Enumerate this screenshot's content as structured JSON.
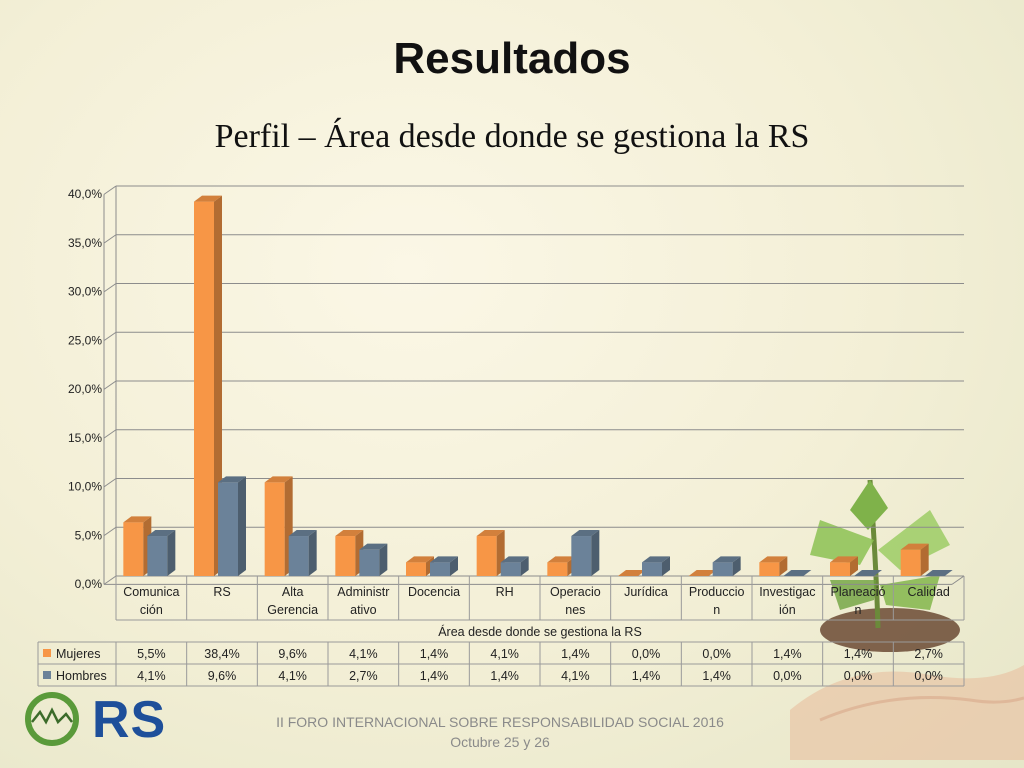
{
  "title": "Resultados",
  "subtitle": "Perfil – Área desde donde se gestiona la RS",
  "footer": {
    "line1": "II FORO INTERNACIONAL SOBRE RESPONSABILIDAD SOCIAL 2016",
    "line2": "Octubre 25 y 26"
  },
  "logo": {
    "text": "RS"
  },
  "chart_data": {
    "type": "bar",
    "title": "",
    "xlabel": "Área desde donde se gestiona la RS",
    "ylabel": "",
    "ylim": [
      0,
      40
    ],
    "yticks": [
      "0,0%",
      "5,0%",
      "10,0%",
      "15,0%",
      "20,0%",
      "25,0%",
      "30,0%",
      "35,0%",
      "40,0%"
    ],
    "grid": true,
    "legend": "data-table",
    "categories": [
      [
        "Comunica",
        "ción"
      ],
      [
        "RS"
      ],
      [
        "Alta",
        "Gerencia"
      ],
      [
        "Administr",
        "ativo"
      ],
      [
        "Docencia"
      ],
      [
        "RH"
      ],
      [
        "Operacio",
        "nes"
      ],
      [
        "Jurídica"
      ],
      [
        "Produccio",
        "n"
      ],
      [
        "Investigac",
        "ión"
      ],
      [
        "Planeació",
        "n"
      ],
      [
        "Calidad"
      ]
    ],
    "series": [
      {
        "name": "Mujeres",
        "color": "#f79646",
        "values": [
          5.5,
          38.4,
          9.6,
          4.1,
          1.4,
          4.1,
          1.4,
          0.0,
          0.0,
          1.4,
          1.4,
          2.7
        ],
        "labels": [
          "5,5%",
          "38,4%",
          "9,6%",
          "4,1%",
          "1,4%",
          "4,1%",
          "1,4%",
          "0,0%",
          "0,0%",
          "1,4%",
          "1,4%",
          "2,7%"
        ]
      },
      {
        "name": "Hombres",
        "color": "#6b8299",
        "values": [
          4.1,
          9.6,
          4.1,
          2.7,
          1.4,
          1.4,
          4.1,
          1.4,
          1.4,
          0.0,
          0.0,
          0.0
        ],
        "labels": [
          "4,1%",
          "9,6%",
          "4,1%",
          "2,7%",
          "1,4%",
          "1,4%",
          "4,1%",
          "1,4%",
          "1,4%",
          "0,0%",
          "0,0%",
          "0,0%"
        ]
      }
    ]
  }
}
